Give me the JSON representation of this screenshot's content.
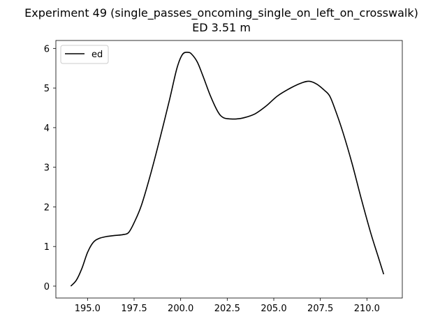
{
  "chart_data": {
    "type": "line",
    "title": "Experiment 49 (single_passes_oncoming_single_on_left_on_crosswalk)",
    "subtitle": "ED 3.51 m",
    "xlabel": "",
    "ylabel": "",
    "xlim": [
      193.3,
      211.9
    ],
    "ylim": [
      -0.3,
      6.2
    ],
    "x_ticks": [
      195.0,
      197.5,
      200.0,
      202.5,
      205.0,
      207.5,
      210.0
    ],
    "x_tick_labels": [
      "195.0",
      "197.5",
      "200.0",
      "202.5",
      "205.0",
      "207.5",
      "210.0"
    ],
    "y_ticks": [
      0,
      1,
      2,
      3,
      4,
      5,
      6
    ],
    "y_tick_labels": [
      "0",
      "1",
      "2",
      "3",
      "4",
      "5",
      "6"
    ],
    "grid": false,
    "legend": {
      "position": "top-left",
      "entries": [
        "ed"
      ]
    },
    "series": [
      {
        "name": "ed",
        "color": "#000000",
        "x": [
          194.1,
          194.4,
          194.7,
          195.0,
          195.3,
          195.6,
          196.0,
          196.5,
          196.9,
          197.2,
          197.5,
          197.9,
          198.4,
          198.9,
          199.4,
          199.8,
          200.1,
          200.4,
          200.6,
          200.9,
          201.2,
          201.6,
          202.0,
          202.3,
          202.7,
          203.0,
          203.4,
          204.0,
          204.6,
          205.2,
          205.9,
          206.5,
          206.9,
          207.3,
          207.7,
          208.0,
          208.3,
          208.7,
          209.2,
          209.7,
          210.2,
          210.6,
          210.9
        ],
        "y": [
          0.0,
          0.15,
          0.45,
          0.85,
          1.1,
          1.2,
          1.25,
          1.28,
          1.3,
          1.35,
          1.6,
          2.05,
          2.85,
          3.75,
          4.7,
          5.5,
          5.85,
          5.9,
          5.85,
          5.65,
          5.3,
          4.8,
          4.4,
          4.25,
          4.22,
          4.22,
          4.25,
          4.35,
          4.55,
          4.8,
          5.0,
          5.13,
          5.17,
          5.1,
          4.95,
          4.8,
          4.45,
          3.9,
          3.1,
          2.2,
          1.35,
          0.75,
          0.3
        ]
      }
    ]
  }
}
